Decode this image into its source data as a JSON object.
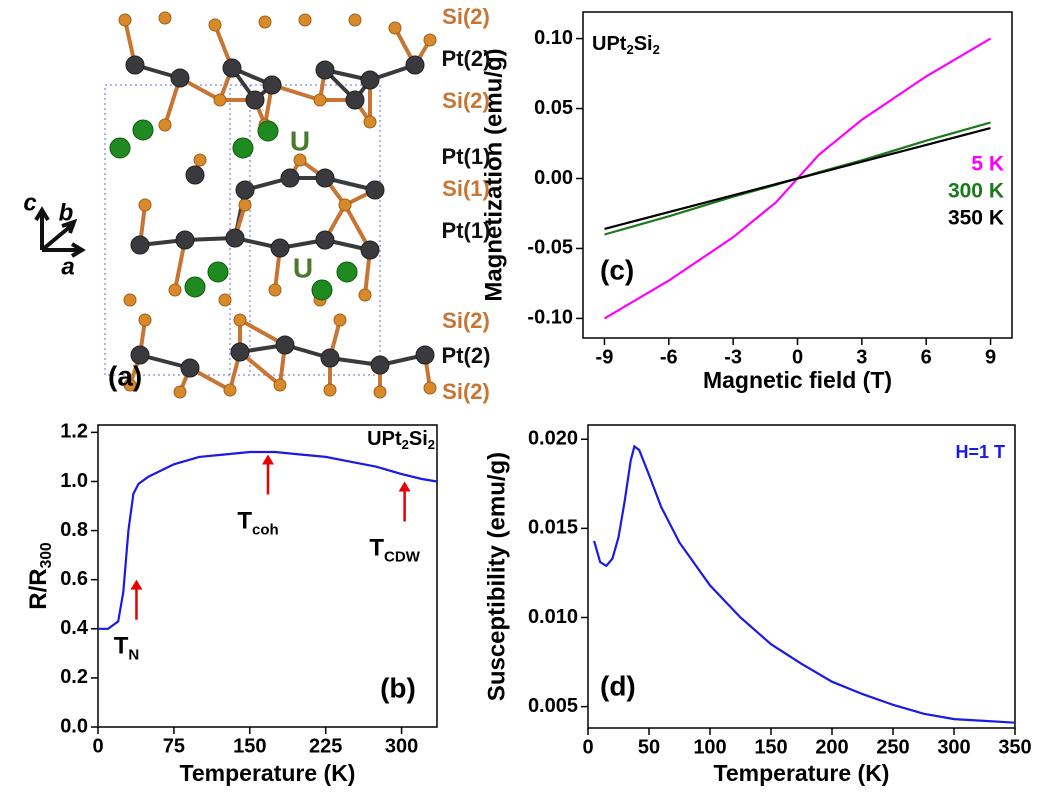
{
  "structure": {
    "panel_label": "(a)",
    "site_labels": [
      {
        "text": "Si(2)",
        "color": "#c87533"
      },
      {
        "text": "Pt(2)",
        "color": "#111111"
      },
      {
        "text": "Si(2)",
        "color": "#c87533"
      },
      {
        "text": "Pt(1)",
        "color": "#111111"
      },
      {
        "text": "Si(1)",
        "color": "#c87533"
      },
      {
        "text": "Pt(1)",
        "color": "#111111"
      },
      {
        "text": "Si(2)",
        "color": "#c87533"
      },
      {
        "text": "Pt(2)",
        "color": "#111111"
      },
      {
        "text": "Si(2)",
        "color": "#c87533"
      }
    ],
    "u_labels": [
      "U",
      "U"
    ],
    "u_color": "#4a7a2c",
    "axis_labels": [
      "c",
      "b",
      "a"
    ]
  },
  "chart_data": [
    {
      "type": "line",
      "panel_label": "(b)",
      "compound": [
        {
          "text": "UPt"
        },
        {
          "text": "2",
          "sub": true
        },
        {
          "text": "Si"
        },
        {
          "text": "2",
          "sub": true
        }
      ],
      "xlabel": "Temperature (K)",
      "ylabel": [
        {
          "text": "R/R"
        },
        {
          "text": "300",
          "sub": true
        }
      ],
      "xlim": [
        0,
        335
      ],
      "ylim": [
        0,
        1.23
      ],
      "xticks": [
        0,
        75,
        150,
        225,
        300
      ],
      "yticks": [
        {
          "value": 0,
          "label": "0.0"
        },
        0.2,
        0.4,
        0.6,
        0.8,
        {
          "value": 1,
          "label": "1.0"
        },
        1.2
      ],
      "x": [
        0,
        10,
        20,
        25,
        30,
        35,
        40,
        50,
        75,
        100,
        125,
        150,
        175,
        200,
        225,
        250,
        275,
        300,
        320,
        335
      ],
      "series": [
        {
          "color": "#1a1ae6",
          "values": [
            0.4,
            0.4,
            0.43,
            0.55,
            0.8,
            0.95,
            0.99,
            1.02,
            1.07,
            1.1,
            1.11,
            1.12,
            1.12,
            1.11,
            1.1,
            1.08,
            1.06,
            1.03,
            1.01,
            1.0
          ]
        }
      ],
      "annotations": [
        {
          "text": "T",
          "sub": "N",
          "x": 38,
          "y": 0.6
        },
        {
          "text": "T",
          "sub": "coh",
          "x": 168,
          "y": 1.11
        },
        {
          "text": "T",
          "sub": "CDW",
          "x": 303,
          "y": 1.0
        }
      ],
      "annotation_color": "#e60000"
    },
    {
      "type": "line",
      "panel_label": "(c)",
      "compound": [
        {
          "text": "UPt"
        },
        {
          "text": "2",
          "sub": true
        },
        {
          "text": "Si"
        },
        {
          "text": "2",
          "sub": true
        }
      ],
      "xlabel": "Magnetic field (T)",
      "ylabel": "Magnetization (emu/g)",
      "xlim": [
        -10,
        10
      ],
      "ylim": [
        -0.114,
        0.119
      ],
      "xticks": [
        -9,
        -6,
        -3,
        0,
        3,
        6,
        9
      ],
      "yticks": [
        {
          "value": -0.1,
          "label": "-0.10"
        },
        -0.05,
        {
          "value": 0,
          "label": "0.00"
        },
        0.05,
        {
          "value": 0.1,
          "label": "0.10"
        }
      ],
      "x": [
        -9,
        -6,
        -3,
        -1,
        0,
        1,
        3,
        6,
        9
      ],
      "series": [
        {
          "name": "5 K",
          "color": "#ff00ff",
          "values": [
            -0.1,
            -0.073,
            -0.042,
            -0.017,
            0,
            0.017,
            0.042,
            0.073,
            0.1
          ]
        },
        {
          "name": "300 K",
          "color": "#1a7a1a",
          "values": [
            -0.04,
            -0.027,
            -0.013,
            -0.0045,
            0,
            0.0045,
            0.013,
            0.027,
            0.04
          ]
        },
        {
          "name": "350 K",
          "color": "#000000",
          "values": [
            -0.036,
            -0.024,
            -0.012,
            -0.004,
            0,
            0.004,
            0.012,
            0.024,
            0.036
          ]
        }
      ],
      "legend": "right"
    },
    {
      "type": "line",
      "panel_label": "(d)",
      "xlabel": "Temperature (K)",
      "ylabel": "Susceptibility (emu/g)",
      "xlim": [
        0,
        350
      ],
      "ylim": [
        0.0038,
        0.0208
      ],
      "xticks": [
        0,
        50,
        100,
        150,
        200,
        250,
        300,
        350
      ],
      "yticks": [
        0.005,
        {
          "value": 0.01,
          "label": "0.010"
        },
        0.015,
        {
          "value": 0.02,
          "label": "0.020"
        }
      ],
      "x": [
        5,
        10,
        15,
        20,
        25,
        30,
        35,
        38,
        42,
        50,
        60,
        75,
        100,
        125,
        150,
        175,
        200,
        225,
        250,
        275,
        300,
        325,
        350
      ],
      "series": [
        {
          "color": "#1a1ae6",
          "values": [
            0.0143,
            0.0131,
            0.0129,
            0.0133,
            0.0145,
            0.0165,
            0.0188,
            0.0196,
            0.0194,
            0.018,
            0.0162,
            0.0142,
            0.0118,
            0.01,
            0.0085,
            0.0074,
            0.0064,
            0.0057,
            0.0051,
            0.0046,
            0.0043,
            0.0042,
            0.0041
          ]
        }
      ],
      "note": {
        "text": "H=1 T",
        "color": "#1a1ae6"
      }
    }
  ]
}
